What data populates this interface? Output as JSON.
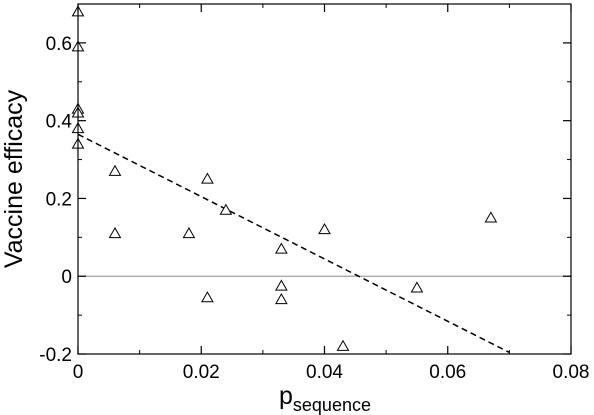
{
  "chart_data": {
    "type": "scatter",
    "title": "",
    "xlabel": "p",
    "xlabel_subscript": "sequence",
    "ylabel": "Vaccine efficacy",
    "xlim": [
      0,
      0.08
    ],
    "ylim": [
      -0.2,
      0.7
    ],
    "xticks": [
      0,
      0.02,
      0.04,
      0.06,
      0.08
    ],
    "xtick_labels": [
      "0",
      "0.02",
      "0.04",
      "0.06",
      "0.08"
    ],
    "yticks": [
      -0.2,
      0,
      0.2,
      0.4,
      0.6
    ],
    "ytick_labels": [
      "-0.2",
      "0",
      "0.2",
      "0.4",
      "0.6"
    ],
    "grid": false,
    "marker": "open-triangle",
    "reference_line": {
      "y": 0,
      "color": "#a0a0a0"
    },
    "fit_line": {
      "style": "dashed",
      "color": "#000000",
      "x": [
        0,
        0.07
      ],
      "y": [
        0.365,
        -0.196
      ]
    },
    "series": [
      {
        "x": [
          0,
          0,
          0,
          0,
          0,
          0,
          0.006,
          0.006,
          0.018,
          0.021,
          0.021,
          0.024,
          0.033,
          0.033,
          0.033,
          0.04,
          0.043,
          0.055,
          0.067
        ],
        "y": [
          0.68,
          0.59,
          0.43,
          0.42,
          0.38,
          0.34,
          0.27,
          0.11,
          0.11,
          0.25,
          -0.055,
          0.17,
          0.07,
          -0.025,
          -0.06,
          0.12,
          -0.18,
          -0.03,
          0.15
        ]
      }
    ]
  }
}
